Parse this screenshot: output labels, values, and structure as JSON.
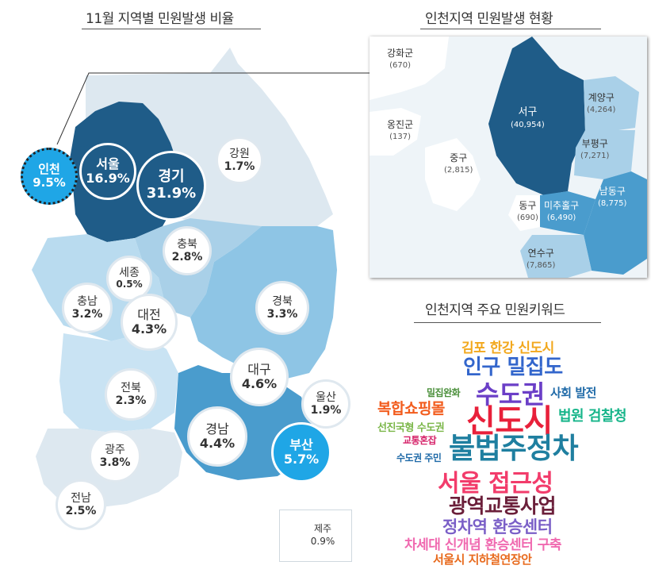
{
  "titles": {
    "map": "11월 지역별 민원발생 비율",
    "incheon_map": "인천지역 민원발생 현황",
    "keywords": "인천지역 주요 민원키워드"
  },
  "regions": [
    {
      "id": "incheon",
      "name": "인천",
      "pct": "9.5%"
    },
    {
      "id": "seoul",
      "name": "서울",
      "pct": "16.9%"
    },
    {
      "id": "gyeonggi",
      "name": "경기",
      "pct": "31.9%"
    },
    {
      "id": "gangwon",
      "name": "강원",
      "pct": "1.7%"
    },
    {
      "id": "chungbuk",
      "name": "충북",
      "pct": "2.8%"
    },
    {
      "id": "sejong",
      "name": "세종",
      "pct": "0.5%"
    },
    {
      "id": "chungnam",
      "name": "충남",
      "pct": "3.2%"
    },
    {
      "id": "daejeon",
      "name": "대전",
      "pct": "4.3%"
    },
    {
      "id": "gyeongbuk",
      "name": "경북",
      "pct": "3.3%"
    },
    {
      "id": "daegu",
      "name": "대구",
      "pct": "4.6%"
    },
    {
      "id": "ulsan",
      "name": "울산",
      "pct": "1.9%"
    },
    {
      "id": "jeonbuk",
      "name": "전북",
      "pct": "2.3%"
    },
    {
      "id": "gwangju",
      "name": "광주",
      "pct": "3.8%"
    },
    {
      "id": "gyeongnam",
      "name": "경남",
      "pct": "4.4%"
    },
    {
      "id": "busan",
      "name": "부산",
      "pct": "5.7%"
    },
    {
      "id": "jeonnam",
      "name": "전남",
      "pct": "2.5%"
    },
    {
      "id": "jeju",
      "name": "제주",
      "pct": "0.9%"
    }
  ],
  "incheon_districts": [
    {
      "id": "ganghwa",
      "name": "강화군",
      "count": "(670)"
    },
    {
      "id": "ongjin",
      "name": "옹진군",
      "count": "(137)"
    },
    {
      "id": "seogu",
      "name": "서구",
      "count": "(40,954)"
    },
    {
      "id": "gyeyang",
      "name": "계양구",
      "count": "(4,264)"
    },
    {
      "id": "bupyeong",
      "name": "부평구",
      "count": "(7,271)"
    },
    {
      "id": "junggu",
      "name": "중구",
      "count": "(2,815)"
    },
    {
      "id": "namdong",
      "name": "남동구",
      "count": "(8,775)"
    },
    {
      "id": "donggu",
      "name": "동구",
      "count": "(690)"
    },
    {
      "id": "michuhol",
      "name": "미추홀구",
      "count": "(6,490)"
    },
    {
      "id": "yeonsu",
      "name": "연수구",
      "count": "(7,865)"
    }
  ],
  "keywords": [
    {
      "text": "김포 한강 신도시",
      "color": "#f2a81d"
    },
    {
      "text": "인구 밀집도",
      "color": "#3366cc"
    },
    {
      "text": "밀집완화",
      "color": "#4a8f3a"
    },
    {
      "text": "수도권",
      "color": "#6b3fc7"
    },
    {
      "text": "사회 발전",
      "color": "#1f6aa8"
    },
    {
      "text": "복합쇼핑몰",
      "color": "#f25c1d"
    },
    {
      "text": "신도시",
      "color": "#e8203a"
    },
    {
      "text": "법원 검찰청",
      "color": "#17b58a"
    },
    {
      "text": "선진국형 수도권",
      "color": "#7ab648"
    },
    {
      "text": "교통혼잡",
      "color": "#d6246a"
    },
    {
      "text": "불법주정차",
      "color": "#1f7fa0"
    },
    {
      "text": "수도권 주민",
      "color": "#1f6aa8"
    },
    {
      "text": "서울 접근성",
      "color": "#f23c6b"
    },
    {
      "text": "광역교통사업",
      "color": "#6b1f3a"
    },
    {
      "text": "정차역 환승센터",
      "color": "#7a5fc7"
    },
    {
      "text": "차세대 신개념 환승센터 구축",
      "color": "#f06ab0"
    },
    {
      "text": "서울시 지하철연장안",
      "color": "#e86a1d"
    }
  ]
}
